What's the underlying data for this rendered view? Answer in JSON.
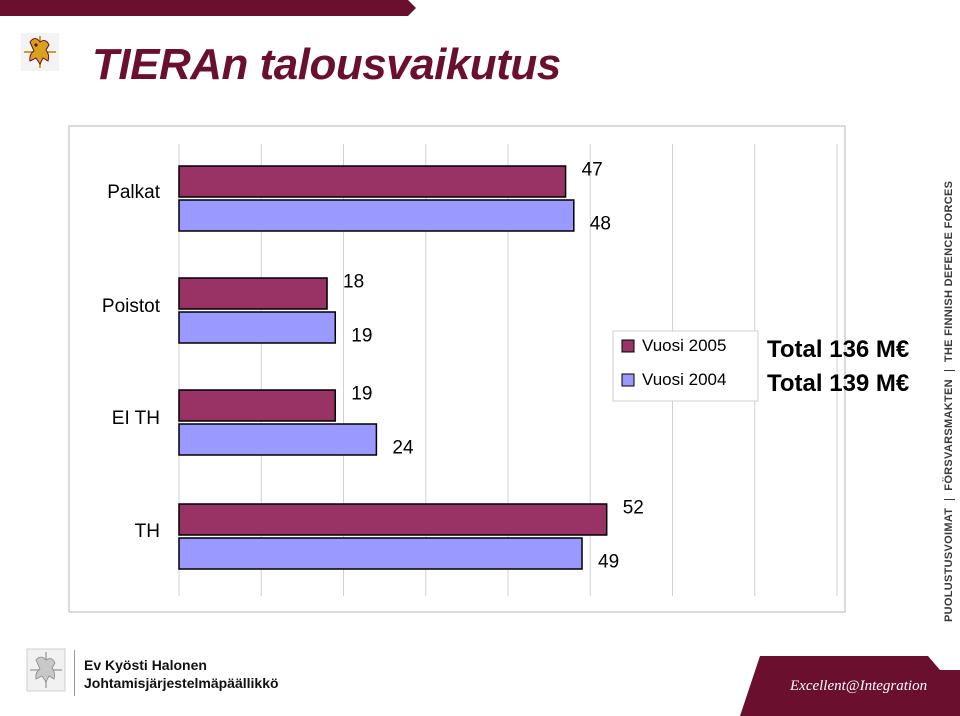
{
  "slide": {
    "title": "TIERAn talousvaikutus",
    "brand_color": "#6b0f2e",
    "side_text": {
      "a": "PUOLUSTUSVOIMAT",
      "b": "FÖRSVARSMAKTEN",
      "c": "THE FINNISH DEFENCE FORCES"
    },
    "icons": [
      "heraldic-lion-icon"
    ]
  },
  "footer": {
    "presenter_name": "Ev Kyösti Halonen",
    "presenter_role": "Johtamisjärjestelmäpäällikkö",
    "motto": "Excellent@Integration"
  },
  "chart_data": {
    "type": "bar",
    "orientation": "horizontal",
    "categories": [
      "Palkat",
      "Poistot",
      "EI TH",
      "TH"
    ],
    "series": [
      {
        "name": "Vuosi 2005",
        "values": [
          47,
          18,
          19,
          52
        ],
        "color": "#993366",
        "total": "Total 136 M€"
      },
      {
        "name": "Vuosi 2004",
        "values": [
          48,
          19,
          24,
          49
        ],
        "color": "#9999ff",
        "total": "Total 139 M€"
      }
    ],
    "xlim": [
      0,
      80
    ],
    "grid": true,
    "legend_position": "right"
  }
}
